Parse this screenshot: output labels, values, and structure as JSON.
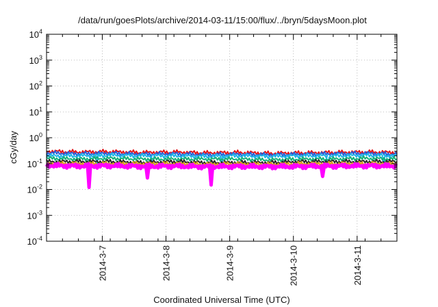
{
  "chart_data": {
    "type": "line",
    "title": "/data/run/goesPlots/archive/2014-03-11/15:00/flux/../bryn/5daysMoon.plot",
    "xlabel": "Coordinated Universal Time (UTC)",
    "ylabel": "cGy/day",
    "yscale": "log",
    "ylim": [
      0.0001,
      10000
    ],
    "xlim": [
      "2014-03-06T03:00",
      "2014-03-11T15:00"
    ],
    "grid": true,
    "yticks": [
      {
        "value": 0.0001,
        "base": "10",
        "exp": "-4"
      },
      {
        "value": 0.001,
        "base": "10",
        "exp": "-3"
      },
      {
        "value": 0.01,
        "base": "10",
        "exp": "-2"
      },
      {
        "value": 0.1,
        "base": "10",
        "exp": "-1"
      },
      {
        "value": 1,
        "base": "10",
        "exp": "0"
      },
      {
        "value": 10,
        "base": "10",
        "exp": "1"
      },
      {
        "value": 100,
        "base": "10",
        "exp": "2"
      },
      {
        "value": 1000,
        "base": "10",
        "exp": "3"
      },
      {
        "value": 10000,
        "base": "10",
        "exp": "4"
      }
    ],
    "xticks": [
      {
        "label": "2014-3-7",
        "value": "2014-03-07T00:00"
      },
      {
        "label": "2014-3-8",
        "value": "2014-03-08T00:00"
      },
      {
        "label": "2014-3-9",
        "value": "2014-03-09T00:00"
      },
      {
        "label": "2014-3-10",
        "value": "2014-03-10T00:00"
      },
      {
        "label": "2014-3-11",
        "value": "2014-03-11T00:00"
      }
    ],
    "x": [
      "2014-03-06T03:00",
      "2014-03-06T15:00",
      "2014-03-07T03:00",
      "2014-03-07T15:00",
      "2014-03-08T03:00",
      "2014-03-08T15:00",
      "2014-03-09T03:00",
      "2014-03-09T15:00",
      "2014-03-10T03:00",
      "2014-03-10T15:00",
      "2014-03-11T03:00",
      "2014-03-11T15:00"
    ],
    "series": [
      {
        "color": "#e4141a",
        "values": [
          0.3,
          0.28,
          0.29,
          0.27,
          0.28,
          0.26,
          0.27,
          0.25,
          0.26,
          0.27,
          0.28,
          0.27
        ],
        "dips": [],
        "fill": false
      },
      {
        "color": "#2a5fd6",
        "values": [
          0.26,
          0.24,
          0.25,
          0.23,
          0.24,
          0.22,
          0.23,
          0.22,
          0.23,
          0.24,
          0.25,
          0.23
        ],
        "dips": [],
        "fill": false
      },
      {
        "color": "#1eb5e8",
        "values": [
          0.2,
          0.2,
          0.21,
          0.2,
          0.2,
          0.19,
          0.2,
          0.19,
          0.2,
          0.2,
          0.21,
          0.2
        ],
        "dips": [
          {
            "x": "2014-03-06T22:00",
            "y": 0.09
          },
          {
            "x": "2014-03-07T19:00",
            "y": 0.09
          },
          {
            "x": "2014-03-08T21:00",
            "y": 0.09
          },
          {
            "x": "2014-03-10T13:00",
            "y": 0.1
          },
          {
            "x": "2014-03-11T10:00",
            "y": 0.1
          }
        ],
        "fill": false
      },
      {
        "color": "#16b27a",
        "values": [
          0.16,
          0.15,
          0.16,
          0.15,
          0.15,
          0.15,
          0.15,
          0.14,
          0.15,
          0.15,
          0.16,
          0.15
        ],
        "dips": [],
        "fill": false
      },
      {
        "color": "#2a2a2a",
        "values": [
          0.12,
          0.12,
          0.12,
          0.11,
          0.12,
          0.11,
          0.11,
          0.11,
          0.12,
          0.12,
          0.12,
          0.12
        ],
        "dips": [],
        "fill": false
      },
      {
        "color": "#d9a018",
        "values": [
          0.1,
          0.1,
          0.1,
          0.1,
          0.1,
          0.095,
          0.1,
          0.095,
          0.1,
          0.1,
          0.1,
          0.1
        ],
        "dips": [],
        "fill": false
      },
      {
        "color": "#ff00ff",
        "values": [
          0.085,
          0.08,
          0.082,
          0.078,
          0.08,
          0.076,
          0.078,
          0.076,
          0.078,
          0.08,
          0.082,
          0.08
        ],
        "dips": [
          {
            "x": "2014-03-06T19:00",
            "y": 0.012
          },
          {
            "x": "2014-03-07T17:00",
            "y": 0.028
          },
          {
            "x": "2014-03-08T17:00",
            "y": 0.015
          },
          {
            "x": "2014-03-10T11:00",
            "y": 0.032
          }
        ],
        "fill": true
      }
    ]
  }
}
